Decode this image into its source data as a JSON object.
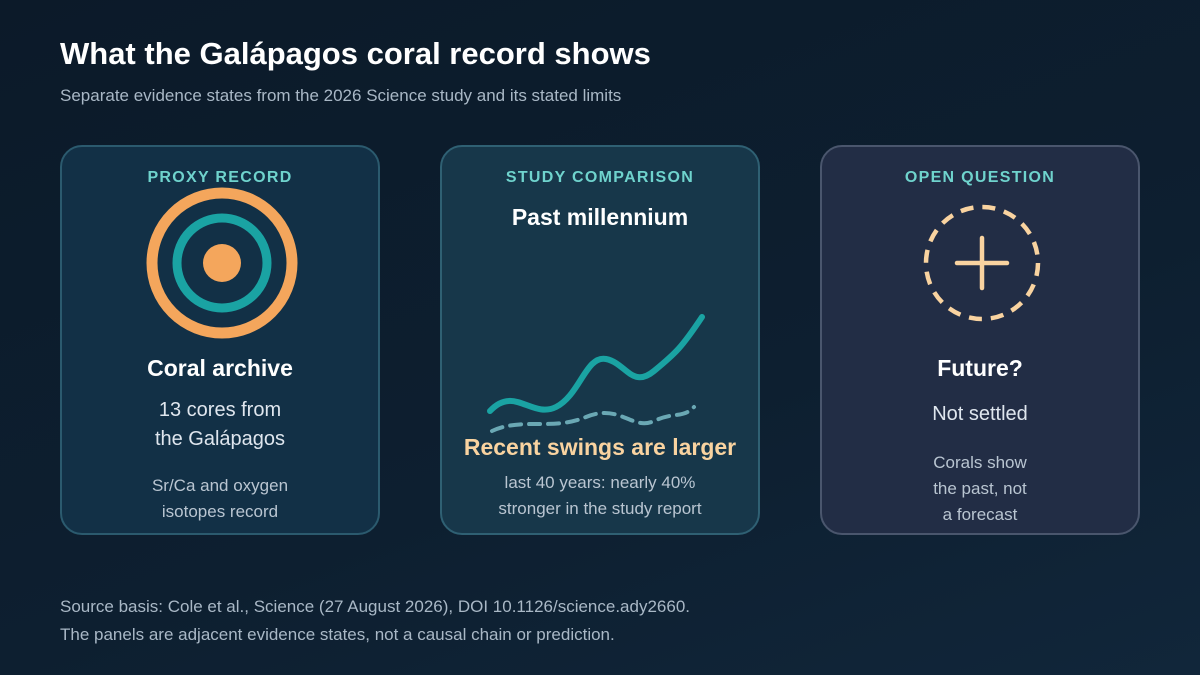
{
  "title": "What the Galápagos coral record shows",
  "subtitle": "Separate evidence states from the 2026 Science study and its stated limits",
  "panels": [
    {
      "tag": "PROXY RECORD",
      "icon": "concentric-rings-icon",
      "heading": "Coral archive",
      "body": [
        "13 cores from",
        "the Galápagos"
      ],
      "note": [
        "Sr/Ca and oxygen",
        "isotopes record"
      ]
    },
    {
      "tag": "STUDY COMPARISON",
      "heading": "Past millennium",
      "icon": "wave-comparison-icon",
      "highlight": "Recent swings are larger",
      "note": [
        "last 40 years: nearly 40%",
        "stronger in the study report"
      ]
    },
    {
      "tag": "OPEN QUESTION",
      "icon": "dashed-plus-circle-icon",
      "heading": "Future?",
      "body": [
        "Not settled"
      ],
      "note": [
        "Corals show",
        "the past, not",
        "a forecast"
      ]
    }
  ],
  "source": [
    "Source basis: Cole et al., Science (27 August 2026), DOI 10.1126/science.ady2660.",
    "The panels are adjacent evidence states, not a causal chain or prediction."
  ],
  "colors": {
    "accent_teal": "#1aa3a3",
    "accent_orange": "#f4a65c",
    "accent_peach": "#f9d3a0",
    "tag_teal": "#6fd3cd"
  }
}
